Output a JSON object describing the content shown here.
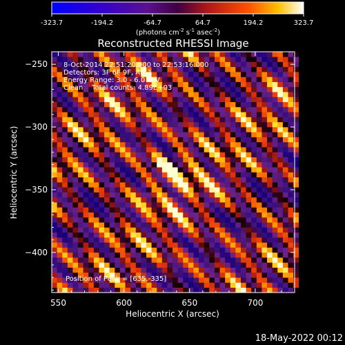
{
  "chart_data": {
    "type": "heatmap",
    "title": "Reconstructed RHESSI Image",
    "xlabel": "Heliocentric X (arcsec)",
    "ylabel": "Heliocentric Y (arcsec)",
    "xlim": [
      545,
      730
    ],
    "ylim": [
      -432,
      -240
    ],
    "xticks": [
      550,
      600,
      650,
      700
    ],
    "yticks": [
      -250,
      -300,
      -350,
      -400
    ],
    "colorbar": {
      "min": -323.7,
      "max": 323.7,
      "ticks": [
        "-323.7",
        "-194.2",
        "-64.7",
        "64.7",
        "194.2",
        "323.7"
      ],
      "label_main": "(photons cm",
      "label_exp1": "-2",
      "label_mid": " s",
      "label_exp2": "-1",
      "label_tail": " asec",
      "label_exp3": "-2",
      "label_end": ")"
    },
    "annotations": {
      "line1": "8-Oct-2014 22:51:20.000 to 22:53:16.000",
      "line2": "Detectors: 3F 6F 9F, Att 1",
      "line3": "Energy Range: 3.0 - 6.0 keV",
      "line4": "Clean    Total counts: 4.89E+03",
      "peak": "Position of Peak = [635,-335]"
    },
    "peak": [
      635,
      -335
    ],
    "pixel_size_arcsec": 4,
    "color_table": "hot-symmetric"
  },
  "footer": {
    "timestamp": "18-May-2022 00:12"
  }
}
